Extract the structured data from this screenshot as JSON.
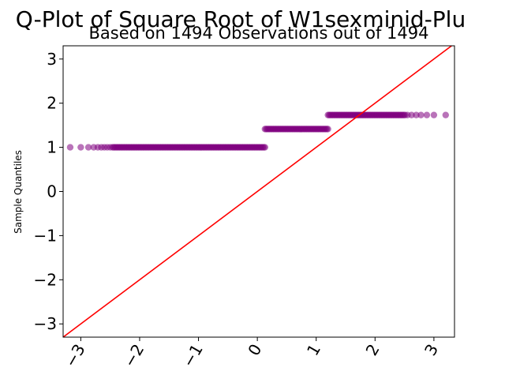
{
  "chart_data": {
    "type": "scatter",
    "title": "Q-Plot of Square Root of W1sexminid-Plu",
    "subtitle": "Based on 1494 Observations out of 1494",
    "xlabel": "",
    "ylabel": "Sample Quantiles",
    "xlim": [
      -3.3,
      3.35
    ],
    "ylim": [
      -3.3,
      3.3
    ],
    "x_ticks": [
      -3,
      -2,
      -1,
      0,
      1,
      2,
      3
    ],
    "x_tick_labels": [
      "−3",
      "−2",
      "−1",
      "0",
      "1",
      "2",
      "3"
    ],
    "y_ticks": [
      -3,
      -2,
      -1,
      0,
      1,
      2,
      3
    ],
    "y_tick_labels": [
      "−3",
      "−2",
      "−1",
      "0",
      "1",
      "2",
      "3"
    ],
    "grid": false,
    "point_color": "#800080",
    "line_color": "#ff0000",
    "reference_line": {
      "slope": 1,
      "intercept": 0
    },
    "series": [
      {
        "x_range": [
          -3.18,
          0.13
        ],
        "y": 1.0,
        "sparse_x": [
          -3.18,
          -3.0,
          -2.87,
          -2.78,
          -2.71,
          -2.65,
          -2.6,
          -2.55,
          -2.5
        ]
      },
      {
        "x_range": [
          0.13,
          1.2
        ],
        "y": 1.414,
        "sparse_x": []
      },
      {
        "x_range": [
          1.2,
          3.2
        ],
        "y": 1.732,
        "sparse_x": [
          2.55,
          2.62,
          2.7,
          2.78,
          2.88,
          3.0,
          3.2
        ]
      }
    ]
  }
}
